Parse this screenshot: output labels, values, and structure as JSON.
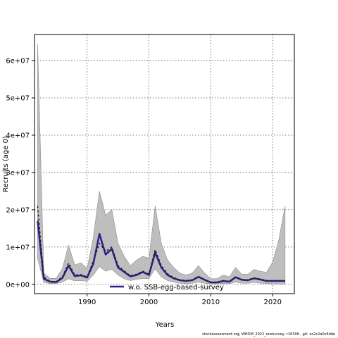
{
  "chart_data": {
    "type": "line",
    "xlabel": "Years",
    "ylabel": "Recruits (age 0)",
    "xlim": [
      1981.5,
      2023.5
    ],
    "ylim": [
      -2500000,
      67000000
    ],
    "x_ticks": [
      1990,
      2000,
      2010,
      2020
    ],
    "x_tick_labels": [
      "1990",
      "2000",
      "2010",
      "2020"
    ],
    "y_ticks": [
      0,
      10000000,
      20000000,
      30000000,
      40000000,
      50000000,
      60000000
    ],
    "y_tick_labels": [
      "0e+00",
      "1e+07",
      "2e+07",
      "3e+07",
      "4e+07",
      "5e+07",
      "6e+07"
    ],
    "grid": true,
    "legend_position": "bottom",
    "years": [
      1982,
      1983,
      1984,
      1985,
      1986,
      1987,
      1988,
      1989,
      1990,
      1991,
      1992,
      1993,
      1994,
      1995,
      1996,
      1997,
      1998,
      1999,
      2000,
      2001,
      2002,
      2003,
      2004,
      2005,
      2006,
      2007,
      2008,
      2009,
      2010,
      2011,
      2012,
      2013,
      2014,
      2015,
      2016,
      2017,
      2018,
      2019,
      2020,
      2021,
      2022
    ],
    "band": {
      "upper": [
        64500000,
        3000000,
        1600000,
        1600000,
        4200000,
        10500000,
        5200000,
        5800000,
        4200000,
        12500000,
        25000000,
        18500000,
        20000000,
        11000000,
        7500000,
        5000000,
        6500000,
        7500000,
        7000000,
        21000000,
        11000000,
        6500000,
        4500000,
        3000000,
        2500000,
        3000000,
        5000000,
        3000000,
        1500000,
        1500000,
        2500000,
        2000000,
        4500000,
        2700000,
        2700000,
        4000000,
        3500000,
        3200000,
        6000000,
        12000000,
        21000000
      ],
      "lower": [
        7000000,
        500000,
        200000,
        200000,
        600000,
        1500000,
        900000,
        1000000,
        800000,
        2500000,
        4800000,
        3500000,
        4000000,
        2500000,
        1500000,
        1000000,
        1300000,
        1600000,
        1500000,
        4200000,
        2000000,
        1000000,
        600000,
        300000,
        200000,
        300000,
        600000,
        300000,
        100000,
        100000,
        200000,
        150000,
        600000,
        300000,
        300000,
        500000,
        300000,
        200000,
        100000,
        0,
        0
      ]
    },
    "series": [
      {
        "name": "w.o. SSB-egg-based-survey",
        "color": "#2c1f8c",
        "values": [
          17000000,
          1500000,
          700000,
          600000,
          1700000,
          5000000,
          2200000,
          2400000,
          1800000,
          5500000,
          13500000,
          8000000,
          9500000,
          4500000,
          3300000,
          2100000,
          2500000,
          3300000,
          2500000,
          8500000,
          4500000,
          2500000,
          1600000,
          1100000,
          900000,
          1100000,
          2000000,
          1200000,
          500000,
          500000,
          900000,
          700000,
          1900000,
          1200000,
          1100000,
          1600000,
          1300000,
          900000,
          900000,
          900000,
          900000
        ]
      },
      {
        "name": "",
        "color": "#222222",
        "dashed": true,
        "values": [
          21000000,
          2000000,
          800000,
          700000,
          2000000,
          5700000,
          2500000,
          2600000,
          2000000,
          6200000,
          11000000,
          8800000,
          10000000,
          5000000,
          3600000,
          2300000,
          2700000,
          3500000,
          2700000,
          9300000,
          5000000,
          2800000,
          1800000,
          1200000,
          1000000,
          1200000,
          2100000,
          1300000,
          600000,
          600000,
          1000000,
          800000,
          2000000,
          1300000,
          1200000,
          1700000,
          1400000,
          1000000,
          1000000,
          1000000,
          1000000
        ]
      }
    ]
  },
  "footer": "stockassessment.org, WHOM_2022_onesurvey, r16306 , git: ec2c2a0c6dde"
}
